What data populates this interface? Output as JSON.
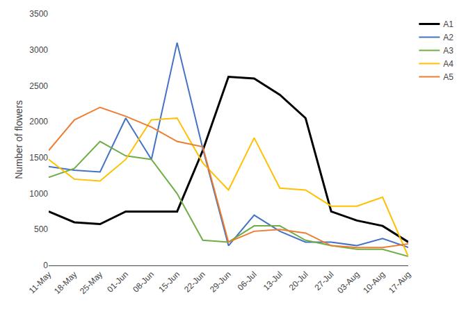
{
  "chart_data": {
    "type": "line",
    "categories": [
      "11-May",
      "18-May",
      "25-May",
      "01-Jun",
      "08-Jun",
      "15-Jun",
      "22-Jun",
      "29-Jun",
      "06-Jul",
      "13-Jul",
      "20-Jul",
      "27-Jul",
      "03-Aug",
      "10-Aug",
      "17-Aug"
    ],
    "series": [
      {
        "name": "A1",
        "color": "#000000",
        "values": [
          750,
          600,
          575,
          750,
          750,
          750,
          1600,
          2625,
          2600,
          2375,
          2050,
          750,
          625,
          550,
          325
        ]
      },
      {
        "name": "A2",
        "color": "#4472C4",
        "values": [
          1375,
          1325,
          1300,
          2050,
          1475,
          3100,
          1625,
          275,
          700,
          475,
          325,
          325,
          275,
          375,
          250
        ]
      },
      {
        "name": "A3",
        "color": "#70AD47",
        "values": [
          1225,
          1350,
          1725,
          1525,
          1475,
          1000,
          350,
          325,
          550,
          550,
          350,
          275,
          225,
          225,
          125
        ]
      },
      {
        "name": "A4",
        "color": "#FFC000",
        "values": [
          1475,
          1200,
          1175,
          1475,
          2025,
          2050,
          1425,
          1050,
          1775,
          1075,
          1050,
          825,
          825,
          950,
          125
        ]
      },
      {
        "name": "A5",
        "color": "#ED7D31",
        "values": [
          1600,
          2025,
          2200,
          2075,
          1925,
          1725,
          1650,
          325,
          475,
          500,
          450,
          275,
          250,
          250,
          300
        ]
      }
    ],
    "ylabel": "Number of flowers",
    "ylim": [
      0,
      3500
    ],
    "yticks": [
      0,
      500,
      1000,
      1500,
      2000,
      2500,
      3000,
      3500
    ],
    "grid": false,
    "legend": "upper right"
  }
}
